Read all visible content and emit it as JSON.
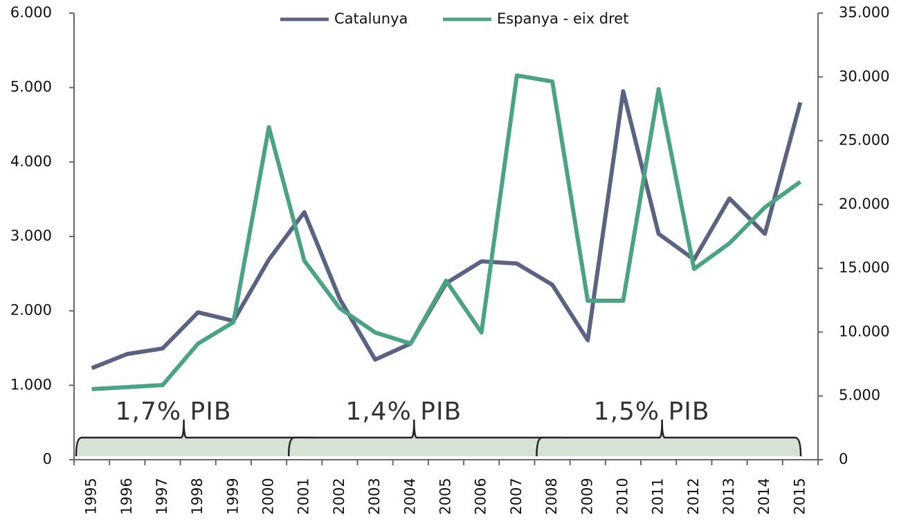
{
  "chart_data": {
    "type": "line",
    "categories": [
      "1995",
      "1996",
      "1997",
      "1998",
      "1999",
      "2000",
      "2001",
      "2002",
      "2003",
      "2004",
      "2005",
      "2006",
      "2007",
      "2008",
      "2009",
      "2010",
      "2011",
      "2012",
      "2013",
      "2014",
      "2015"
    ],
    "series": [
      {
        "name": "Catalunya",
        "color": "#5b6382",
        "values": [
          1230,
          1420,
          1495,
          1980,
          1865,
          2690,
          3325,
          2160,
          1345,
          1560,
          2370,
          2665,
          2635,
          2350,
          1605,
          4950,
          3035,
          2690,
          3510,
          3035,
          4800
        ]
      },
      {
        "name": "Espanya - eix dret",
        "color": "#4aa383",
        "axis": "y2",
        "values": [
          5530,
          5690,
          5850,
          9100,
          10780,
          26060,
          15600,
          11870,
          9970,
          9100,
          14030,
          9970,
          30120,
          29640,
          12460,
          12460,
          29040,
          14950,
          16960,
          19780,
          21780
        ]
      }
    ],
    "ylim": [
      0,
      6000
    ],
    "yticks": [
      0,
      {
        "value": 1000,
        "label": "1.000"
      },
      {
        "value": 2000,
        "label": "2.000"
      },
      {
        "value": 3000,
        "label": "3.000"
      },
      {
        "value": 4000,
        "label": "4.000"
      },
      {
        "value": 5000,
        "label": "5.000"
      },
      {
        "value": 6000,
        "label": "6.000"
      }
    ],
    "y2lim": [
      0,
      35000
    ],
    "y2ticks": [
      0,
      {
        "value": 5000,
        "label": "5.000"
      },
      {
        "value": 10000,
        "label": "10.000"
      },
      {
        "value": 15000,
        "label": "15.000"
      },
      {
        "value": 20000,
        "label": "20.000"
      },
      {
        "value": 25000,
        "label": "25.000"
      },
      {
        "value": 30000,
        "label": "30.000"
      },
      {
        "value": 35000,
        "label": "35.000"
      }
    ],
    "annotations": [
      "1,7% PIB",
      "1,4% PIB",
      "1,5% PIB"
    ],
    "legend": "top"
  }
}
